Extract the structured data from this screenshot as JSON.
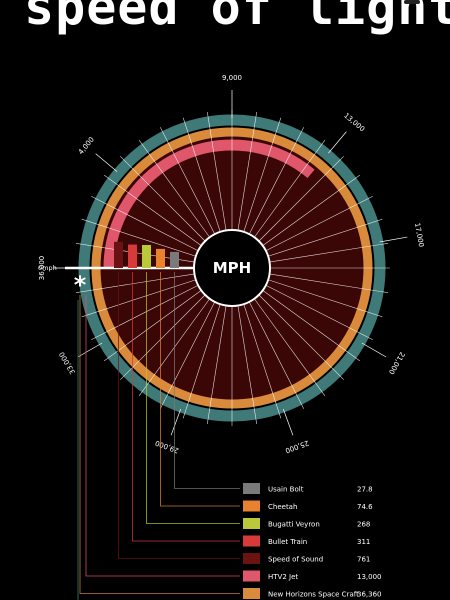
{
  "title": "speed of light",
  "chart_data": {
    "type": "radial-bar",
    "center_label": "MPH",
    "zero_label": "0mph",
    "ring_labels": [
      "4,000",
      "9,000",
      "13,000",
      "17,000",
      "21,000",
      "25,000",
      "29,000",
      "33,000",
      "36,000"
    ],
    "categories": [
      "Usain Bolt",
      "Cheetah",
      "Bugatti Veyron",
      "Bullet Train",
      "Speed of Sound",
      "HTV2 Jet",
      "New Horizons Space Craft"
    ],
    "values": [
      "27.8",
      "74.6",
      "268",
      "311",
      "761",
      "13,000",
      "36,360"
    ],
    "numeric_values": [
      27.8,
      74.6,
      268,
      311,
      761,
      13000,
      36360
    ],
    "range": [
      0,
      36000
    ],
    "colors": {
      "Usain Bolt": "#7a7a7a",
      "Cheetah": "#e8822e",
      "Bugatti Veyron": "#b9c93a",
      "Bullet Train": "#d83a3a",
      "Speed of Sound": "#6b1313",
      "HTV2 Jet": "#e0566a",
      "New Horizons Space Craft": "#d98a3a",
      "outer_ring": "#3f7a78",
      "disc": "#3b0606"
    },
    "asterisk": "*"
  }
}
